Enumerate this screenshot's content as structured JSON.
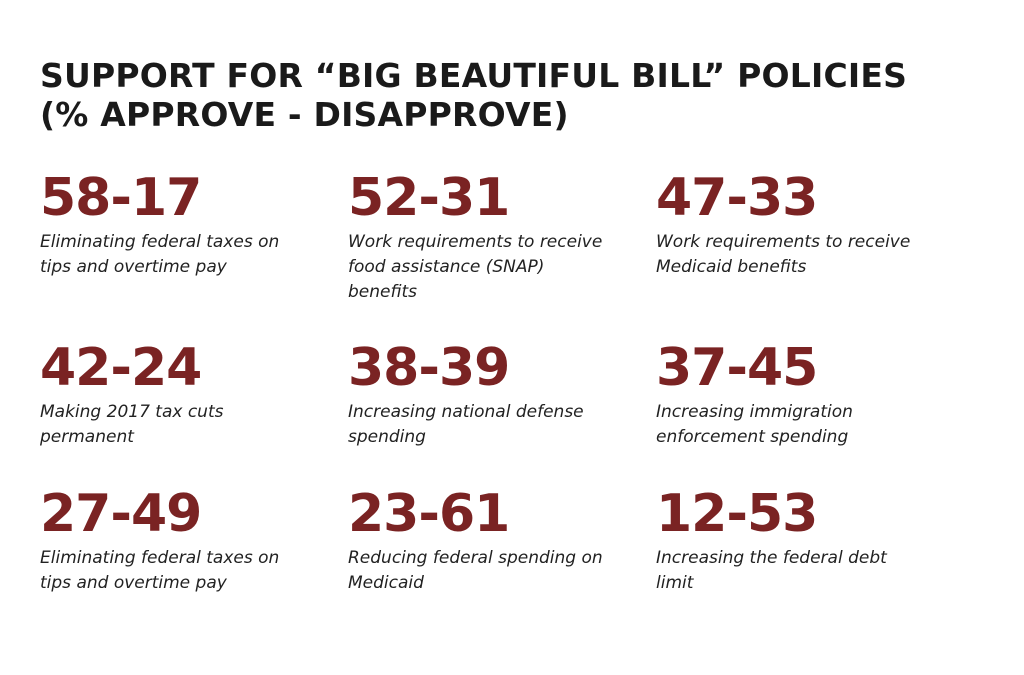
{
  "title": {
    "line1": "SUPPORT FOR “BIG BEAUTIFUL BILL” POLICIES",
    "line2": "(% APPROVE - DISAPPROVE)"
  },
  "colors": {
    "value_color": "#7a2323",
    "text_color": "#222222",
    "background": "#ffffff"
  },
  "chart_data": {
    "type": "table",
    "title": "SUPPORT FOR “BIG BEAUTIFUL BILL” POLICIES (% APPROVE - DISAPPROVE)",
    "columns": [
      "approve",
      "disapprove"
    ],
    "items": [
      {
        "display": "58-17",
        "approve": 58,
        "disapprove": 17,
        "label": "Eliminating federal taxes on tips and overtime pay"
      },
      {
        "display": "52-31",
        "approve": 52,
        "disapprove": 31,
        "label": "Work requirements to receive food assistance (SNAP) benefits"
      },
      {
        "display": "47-33",
        "approve": 47,
        "disapprove": 33,
        "label": "Work requirements to receive Medicaid benefits"
      },
      {
        "display": "42-24",
        "approve": 42,
        "disapprove": 24,
        "label": "Making 2017 tax cuts permanent"
      },
      {
        "display": "38-39",
        "approve": 38,
        "disapprove": 39,
        "label": "Increasing national defense spending"
      },
      {
        "display": "37-45",
        "approve": 37,
        "disapprove": 45,
        "label": "Increasing immigration enforcement spending"
      },
      {
        "display": "27-49",
        "approve": 27,
        "disapprove": 49,
        "label": "Eliminating federal taxes on tips and overtime pay"
      },
      {
        "display": "23-61",
        "approve": 23,
        "disapprove": 61,
        "label": "Reducing federal spending on Medicaid"
      },
      {
        "display": "12-53",
        "approve": 12,
        "disapprove": 53,
        "label": "Increasing the federal debt limit"
      }
    ]
  }
}
